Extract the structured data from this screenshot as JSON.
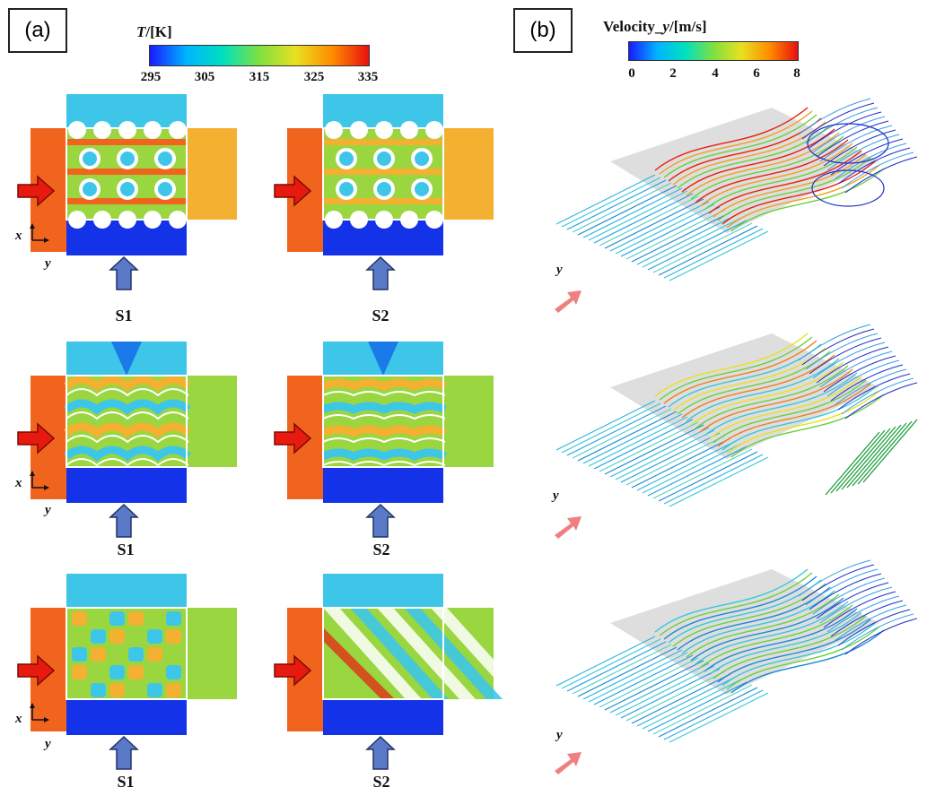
{
  "panels": {
    "a": {
      "tag": "(a)"
    },
    "b": {
      "tag": "(b)"
    }
  },
  "colorbar_temperature": {
    "title_symbol": "T",
    "title_unit": "/[K]",
    "ticks": [
      "295",
      "305",
      "315",
      "325",
      "335"
    ],
    "stops": [
      "#1a1aff",
      "#00b4ff",
      "#00e0c0",
      "#7fe040",
      "#e8e020",
      "#ff8c00",
      "#e81010"
    ]
  },
  "colorbar_velocity": {
    "title_prefix": "Velocity_",
    "title_symbol": "y",
    "title_unit": "/[m/s]",
    "ticks": [
      "0",
      "2",
      "4",
      "6",
      "8"
    ],
    "stops": [
      "#1a1aff",
      "#00b4ff",
      "#00e0c0",
      "#7fe040",
      "#e8e020",
      "#ff8c00",
      "#e81010"
    ]
  },
  "axes": {
    "x": "x",
    "y": "y"
  },
  "rows": [
    {
      "left_case": "S1",
      "right_case": "S2",
      "pattern": "cylinder"
    },
    {
      "left_case": "S1",
      "right_case": "S2",
      "pattern": "wave"
    },
    {
      "left_case": "S1",
      "right_case": "S2",
      "pattern": "lattice"
    }
  ],
  "colors": {
    "hot": "#f0641e",
    "mid": "#9ad640",
    "warm": "#f4b030",
    "cool": "#3ec6e8",
    "cold": "#1432e8",
    "arrow_in": "#e81a10",
    "arrow_cold": "#5a7ac8",
    "arrow_stream": "#f08080"
  }
}
